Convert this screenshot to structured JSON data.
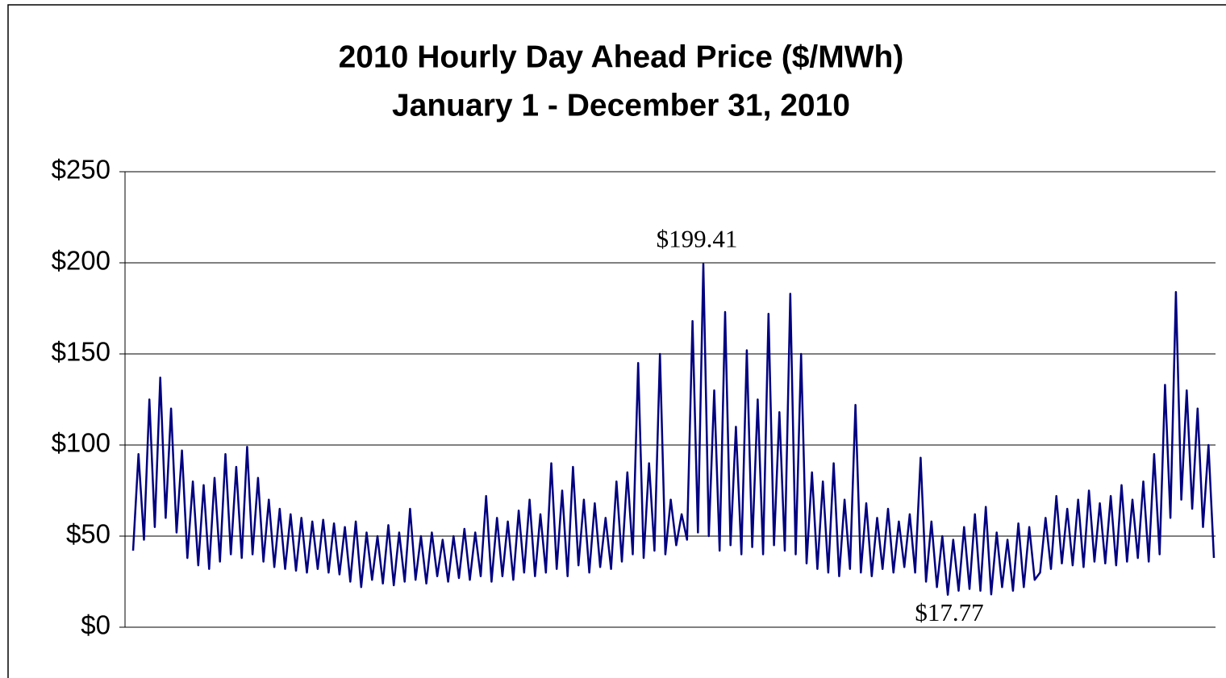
{
  "chart_data": {
    "type": "line",
    "title": "2010 Hourly Day Ahead Price ($/MWh)",
    "subtitle": "January 1 - December 31, 2010",
    "color": "#000080",
    "grid": true,
    "ylim": [
      0,
      250
    ],
    "yticks": [
      {
        "value": 0,
        "label": "$0"
      },
      {
        "value": 50,
        "label": "$50"
      },
      {
        "value": 100,
        "label": "$100"
      },
      {
        "value": 150,
        "label": "$150"
      },
      {
        "value": 200,
        "label": "$200"
      },
      {
        "value": 250,
        "label": "$250"
      }
    ],
    "annotations": [
      {
        "text": "$199.41",
        "value": 199.41
      },
      {
        "text": "$17.77",
        "value": 17.77
      }
    ],
    "values": [
      42,
      95,
      48,
      125,
      55,
      137,
      60,
      120,
      52,
      97,
      38,
      80,
      34,
      78,
      32,
      82,
      36,
      95,
      40,
      88,
      38,
      99,
      40,
      82,
      36,
      70,
      33,
      65,
      32,
      62,
      31,
      60,
      30,
      58,
      32,
      59,
      30,
      57,
      29,
      55,
      25,
      58,
      22,
      52,
      26,
      50,
      24,
      56,
      23,
      52,
      25,
      65,
      26,
      50,
      24,
      52,
      28,
      48,
      25,
      50,
      27,
      54,
      26,
      52,
      28,
      72,
      25,
      60,
      28,
      58,
      26,
      64,
      30,
      70,
      28,
      62,
      30,
      90,
      32,
      75,
      28,
      88,
      34,
      70,
      30,
      68,
      33,
      60,
      32,
      80,
      36,
      85,
      40,
      145,
      38,
      90,
      42,
      150,
      40,
      70,
      45,
      62,
      48,
      168,
      52,
      199.41,
      50,
      130,
      42,
      173,
      45,
      110,
      40,
      152,
      44,
      125,
      40,
      172,
      45,
      118,
      42,
      183,
      40,
      150,
      35,
      85,
      32,
      80,
      30,
      90,
      28,
      70,
      32,
      122,
      30,
      68,
      28,
      60,
      32,
      65,
      30,
      58,
      33,
      62,
      30,
      93,
      25,
      58,
      22,
      50,
      17.77,
      48,
      20,
      55,
      21,
      62,
      20,
      66,
      18,
      52,
      22,
      48,
      20,
      57,
      22,
      55,
      26,
      30,
      60,
      32,
      72,
      35,
      65,
      34,
      70,
      33,
      75,
      36,
      68,
      35,
      72,
      34,
      78,
      36,
      70,
      38,
      80,
      36,
      95,
      40,
      133,
      60,
      184,
      70,
      130,
      65,
      120,
      55,
      100,
      38
    ]
  }
}
